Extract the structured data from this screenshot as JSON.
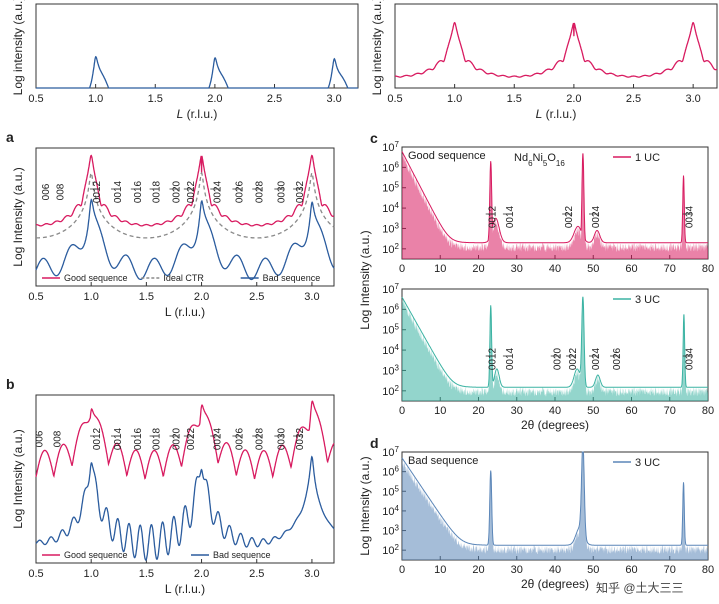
{
  "colors": {
    "pink": "#d81b60",
    "blue": "#2b5c9e",
    "grey": "#8a8a8a",
    "teal": "#3bb3a3",
    "paleblue": "#5b86b8"
  },
  "watermark": "知乎 @土大三三",
  "chart_data": [
    {
      "id": "e",
      "panel_label": "",
      "type": "line",
      "xlabel": "L (r.l.u.)",
      "ylabel": "Log intensity (a.u.)",
      "xlim": [
        0.5,
        3.2
      ],
      "xticks": [
        "0.5",
        "1.0",
        "1.5",
        "2.0",
        "2.5",
        "3.0"
      ],
      "log_y": true,
      "series": [
        {
          "color": "#2b5c9e",
          "model": "bad"
        }
      ]
    },
    {
      "id": "f",
      "panel_label": "",
      "type": "line",
      "xlabel": "L (r.l.u.)",
      "ylabel": "Log intensity (a.u.)",
      "xlim": [
        0.5,
        3.2
      ],
      "xticks": [
        "0.5",
        "1.0",
        "1.5",
        "2.0",
        "2.5",
        "3.0"
      ],
      "log_y": true,
      "series": [
        {
          "color": "#d81b60",
          "model": "good"
        }
      ]
    },
    {
      "id": "a",
      "panel_label": "a",
      "type": "line",
      "xlabel": "L (r.l.u.)",
      "ylabel": "Log Intensity (a.u.)",
      "xlim": [
        0.5,
        3.2
      ],
      "xticks": [
        "0.5",
        "1.0",
        "1.5",
        "2.0",
        "2.5",
        "3.0"
      ],
      "log_y": true,
      "series": [
        {
          "name": "Good sequence",
          "color": "#d81b60",
          "model": "good"
        },
        {
          "name": "Ideal CTR",
          "color": "#8a8a8a",
          "model": "ideal",
          "dashed": true
        },
        {
          "name": "Bad sequence",
          "color": "#2b5c9e",
          "model": "bad"
        }
      ],
      "annotations": [
        {
          "text": "006",
          "x": 0.62,
          "underline": false
        },
        {
          "text": "008",
          "x": 0.75,
          "underline": false
        },
        {
          "text": "0012",
          "x": 1.08,
          "underline": true
        },
        {
          "text": "0014",
          "x": 1.27,
          "underline": true
        },
        {
          "text": "0016",
          "x": 1.45,
          "underline": true
        },
        {
          "text": "0018",
          "x": 1.62,
          "underline": true
        },
        {
          "text": "0020",
          "x": 1.8,
          "underline": true
        },
        {
          "text": "0022",
          "x": 1.93,
          "underline": true
        },
        {
          "text": "0024",
          "x": 2.17,
          "underline": true
        },
        {
          "text": "0026",
          "x": 2.37,
          "underline": true
        },
        {
          "text": "0028",
          "x": 2.55,
          "underline": true
        },
        {
          "text": "0030",
          "x": 2.75,
          "underline": true
        },
        {
          "text": "0032",
          "x": 2.92,
          "underline": true
        }
      ]
    },
    {
      "id": "b",
      "panel_label": "b",
      "type": "line",
      "xlabel": "L (r.l.u.)",
      "ylabel": "Log Intensity (a.u.)",
      "xlim": [
        0.5,
        3.2
      ],
      "xticks": [
        "0.5",
        "1.0",
        "1.5",
        "2.0",
        "2.5",
        "3.0"
      ],
      "log_y": true,
      "series": [
        {
          "name": "Good sequence",
          "color": "#d81b60",
          "model": "goodb"
        },
        {
          "name": "Bad sequence",
          "color": "#2b5c9e",
          "model": "badb"
        }
      ],
      "annotations": [
        {
          "text": "006",
          "x": 0.56,
          "underline": false
        },
        {
          "text": "008",
          "x": 0.72,
          "underline": false
        },
        {
          "text": "0012",
          "x": 1.08,
          "underline": true
        },
        {
          "text": "0014",
          "x": 1.27,
          "underline": true
        },
        {
          "text": "0016",
          "x": 1.45,
          "underline": true
        },
        {
          "text": "0018",
          "x": 1.62,
          "underline": true
        },
        {
          "text": "0020",
          "x": 1.8,
          "underline": true
        },
        {
          "text": "0022",
          "x": 1.93,
          "underline": true
        },
        {
          "text": "0024",
          "x": 2.17,
          "underline": true
        },
        {
          "text": "0026",
          "x": 2.37,
          "underline": true
        },
        {
          "text": "0028",
          "x": 2.55,
          "underline": true
        },
        {
          "text": "0030",
          "x": 2.75,
          "underline": true
        },
        {
          "text": "0032",
          "x": 2.92,
          "underline": true
        }
      ]
    },
    {
      "id": "c1",
      "panel_label": "c",
      "type": "line",
      "xlabel": "",
      "ylabel": "",
      "xlim": [
        0,
        80
      ],
      "xticks": [
        "0",
        "10",
        "20",
        "30",
        "40",
        "50",
        "60",
        "70",
        "80"
      ],
      "ylim_exp": [
        1.5,
        7
      ],
      "yticks": [
        "10^2",
        "10^3",
        "10^4",
        "10^5",
        "10^6",
        "10^7"
      ],
      "inset_text": "Good sequence",
      "formula": "Nd6Ni5O16",
      "series": [
        {
          "name": "1 UC",
          "color": "#d81b60",
          "model": "xrd1"
        }
      ],
      "annotations": [
        {
          "text": "0012",
          "x": 24.5,
          "underline": true
        },
        {
          "text": "0014",
          "x": 29,
          "underline": true
        },
        {
          "text": "0022",
          "x": 44.5,
          "underline": true
        },
        {
          "text": "0024",
          "x": 51.5,
          "underline": true
        },
        {
          "text": "0034",
          "x": 76,
          "underline": true
        }
      ]
    },
    {
      "id": "c2",
      "panel_label": "",
      "type": "line",
      "xlabel": "2θ (degrees)",
      "ylabel": "Log Intensity (a.u.)",
      "xlim": [
        0,
        80
      ],
      "xticks": [
        "0",
        "10",
        "20",
        "30",
        "40",
        "50",
        "60",
        "70",
        "80"
      ],
      "ylim_exp": [
        1.5,
        7
      ],
      "yticks": [
        "10^2",
        "10^3",
        "10^4",
        "10^5",
        "10^6",
        "10^7"
      ],
      "series": [
        {
          "name": "3 UC",
          "color": "#3bb3a3",
          "model": "xrd3"
        }
      ],
      "annotations": [
        {
          "text": "0012",
          "x": 24.5,
          "underline": true
        },
        {
          "text": "0014",
          "x": 29,
          "underline": true
        },
        {
          "text": "0020",
          "x": 41.5,
          "underline": true
        },
        {
          "text": "0022",
          "x": 45.5,
          "underline": true
        },
        {
          "text": "0024",
          "x": 51.5,
          "underline": true
        },
        {
          "text": "0026",
          "x": 57,
          "underline": true
        },
        {
          "text": "0034",
          "x": 76,
          "underline": true
        }
      ]
    },
    {
      "id": "d",
      "panel_label": "d",
      "type": "line",
      "xlabel": "2θ (degrees)",
      "ylabel": "Log Intensity (a.u.)",
      "xlim": [
        0,
        80
      ],
      "xticks": [
        "0",
        "10",
        "20",
        "30",
        "40",
        "50",
        "60",
        "70",
        "80"
      ],
      "ylim_exp": [
        1.5,
        7
      ],
      "yticks": [
        "10^2",
        "10^3",
        "10^4",
        "10^5",
        "10^6",
        "10^7"
      ],
      "inset_text": "Bad sequence",
      "series": [
        {
          "name": "3 UC",
          "color": "#5b86b8",
          "model": "xrdbad"
        }
      ],
      "annotations": []
    }
  ]
}
